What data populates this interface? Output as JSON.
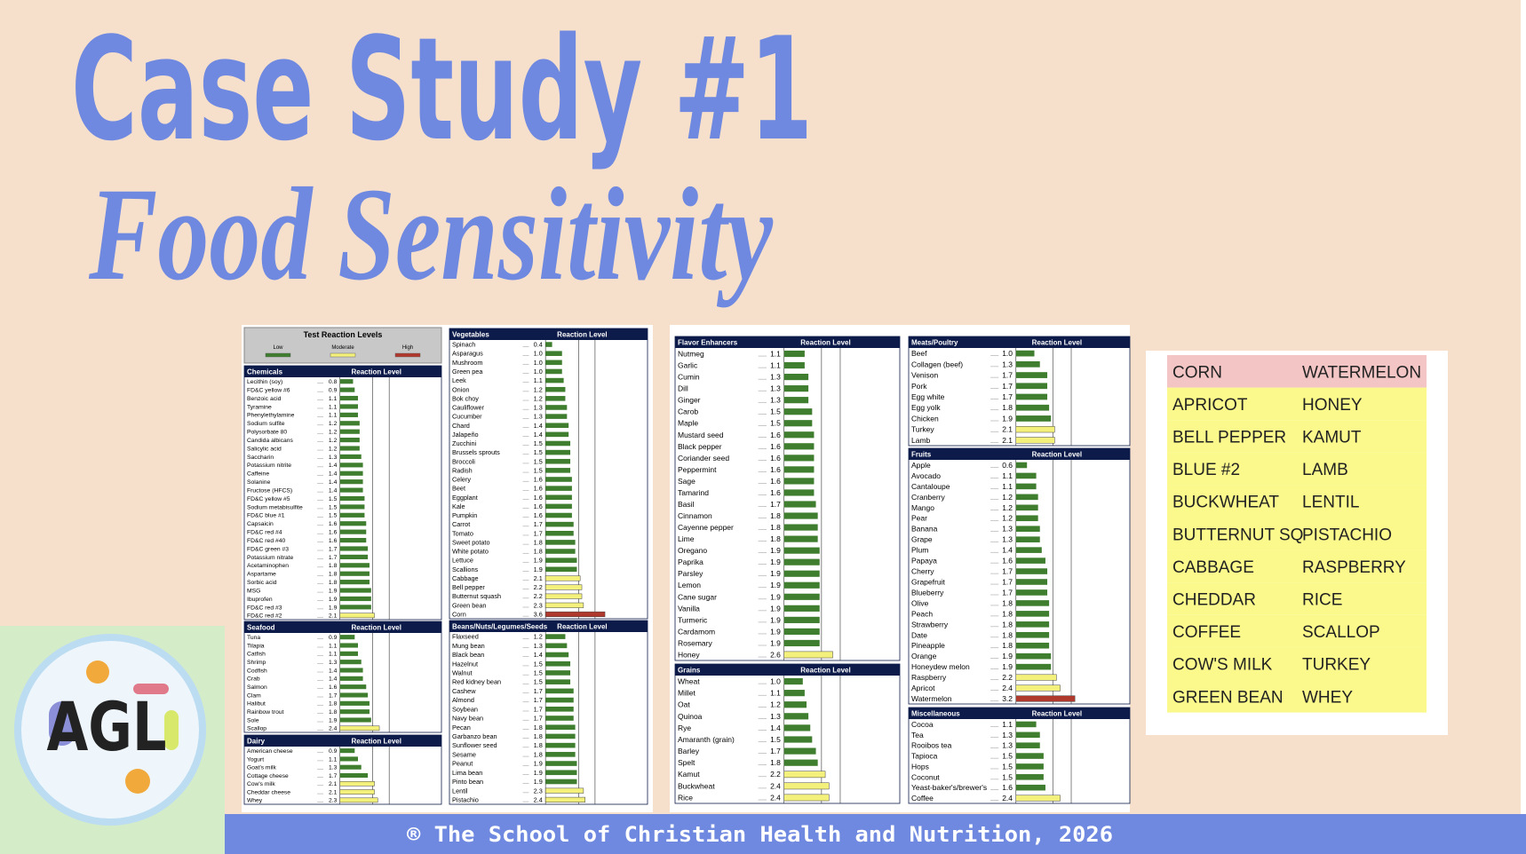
{
  "title": "Case Study #1",
  "subtitle": "Food Sensitivity",
  "report": {
    "legend": {
      "title": "Test Reaction Levels",
      "levels": [
        {
          "label": "Low",
          "color": "#3f7d2f"
        },
        {
          "label": "Moderate",
          "color": "#f4f07c"
        },
        {
          "label": "High",
          "color": "#b0392d"
        }
      ]
    },
    "xlim": [
      0,
      6
    ],
    "xticks": [
      2,
      3
    ],
    "sections": [
      {
        "title": "Chemicals",
        "header": "Reaction Level",
        "items": [
          {
            "name": "Lecithin (soy)",
            "value": 0.8
          },
          {
            "name": "FD&C yellow #6",
            "value": 0.9
          },
          {
            "name": "Benzoic acid",
            "value": 1.1
          },
          {
            "name": "Tyramine",
            "value": 1.1
          },
          {
            "name": "Phenylethylamine",
            "value": 1.1
          },
          {
            "name": "Sodium sulfite",
            "value": 1.2
          },
          {
            "name": "Polysorbate 80",
            "value": 1.2
          },
          {
            "name": "Candida albicans",
            "value": 1.2
          },
          {
            "name": "Salicylic acid",
            "value": 1.2
          },
          {
            "name": "Saccharin",
            "value": 1.3
          },
          {
            "name": "Potassium nitrite",
            "value": 1.4
          },
          {
            "name": "Caffeine",
            "value": 1.4
          },
          {
            "name": "Solanine",
            "value": 1.4
          },
          {
            "name": "Fructose (HFCS)",
            "value": 1.4
          },
          {
            "name": "FD&C yellow #5",
            "value": 1.5
          },
          {
            "name": "Sodium metabisulfite",
            "value": 1.5
          },
          {
            "name": "FD&C blue #1",
            "value": 1.5
          },
          {
            "name": "Capsaicin",
            "value": 1.6
          },
          {
            "name": "FD&C red #4",
            "value": 1.6
          },
          {
            "name": "FD&C red #40",
            "value": 1.6
          },
          {
            "name": "FD&C green #3",
            "value": 1.7
          },
          {
            "name": "Potassium nitrate",
            "value": 1.7
          },
          {
            "name": "Acetaminophen",
            "value": 1.8
          },
          {
            "name": "Aspartame",
            "value": 1.8
          },
          {
            "name": "Sorbic acid",
            "value": 1.8
          },
          {
            "name": "MSG",
            "value": 1.9
          },
          {
            "name": "Ibuprofen",
            "value": 1.9
          },
          {
            "name": "FD&C red #3",
            "value": 1.9
          },
          {
            "name": "FD&C red #2",
            "value": 2.1
          }
        ]
      },
      {
        "title": "Seafood",
        "header": "Reaction Level",
        "items": [
          {
            "name": "Tuna",
            "value": 0.9
          },
          {
            "name": "Tilapia",
            "value": 1.1
          },
          {
            "name": "Catfish",
            "value": 1.1
          },
          {
            "name": "Shrimp",
            "value": 1.3
          },
          {
            "name": "Codfish",
            "value": 1.4
          },
          {
            "name": "Crab",
            "value": 1.4
          },
          {
            "name": "Salmon",
            "value": 1.6
          },
          {
            "name": "Clam",
            "value": 1.7
          },
          {
            "name": "Halibut",
            "value": 1.8
          },
          {
            "name": "Rainbow trout",
            "value": 1.8
          },
          {
            "name": "Sole",
            "value": 1.9
          },
          {
            "name": "Scallop",
            "value": 2.4
          }
        ]
      },
      {
        "title": "Dairy",
        "header": "Reaction Level",
        "items": [
          {
            "name": "American cheese",
            "value": 0.9
          },
          {
            "name": "Yogurt",
            "value": 1.1
          },
          {
            "name": "Goat's milk",
            "value": 1.3
          },
          {
            "name": "Cottage cheese",
            "value": 1.7
          },
          {
            "name": "Cow's milk",
            "value": 2.1
          },
          {
            "name": "Cheddar cheese",
            "value": 2.1
          },
          {
            "name": "Whey",
            "value": 2.3
          }
        ]
      },
      {
        "title": "Vegetables",
        "header": "Reaction Level",
        "items": [
          {
            "name": "Spinach",
            "value": 0.4
          },
          {
            "name": "Asparagus",
            "value": 1,
            "label": "1.0"
          },
          {
            "name": "Mushroom",
            "value": 1,
            "label": "1.0"
          },
          {
            "name": "Green pea",
            "value": 1,
            "label": "1.0"
          },
          {
            "name": "Leek",
            "value": 1.1
          },
          {
            "name": "Onion",
            "value": 1.2
          },
          {
            "name": "Bok choy",
            "value": 1.2
          },
          {
            "name": "Cauliflower",
            "value": 1.3
          },
          {
            "name": "Cucumber",
            "value": 1.3
          },
          {
            "name": "Chard",
            "value": 1.4
          },
          {
            "name": "Jalapeño",
            "value": 1.4
          },
          {
            "name": "Zucchini",
            "value": 1.5
          },
          {
            "name": "Brussels sprouts",
            "value": 1.5
          },
          {
            "name": "Broccoli",
            "value": 1.5
          },
          {
            "name": "Radish",
            "value": 1.5
          },
          {
            "name": "Celery",
            "value": 1.6
          },
          {
            "name": "Beet",
            "value": 1.6
          },
          {
            "name": "Eggplant",
            "value": 1.6
          },
          {
            "name": "Kale",
            "value": 1.6
          },
          {
            "name": "Pumpkin",
            "value": 1.6
          },
          {
            "name": "Carrot",
            "value": 1.7
          },
          {
            "name": "Tomato",
            "value": 1.7
          },
          {
            "name": "Sweet potato",
            "value": 1.8
          },
          {
            "name": "White potato",
            "value": 1.8
          },
          {
            "name": "Lettuce",
            "value": 1.9
          },
          {
            "name": "Scallions",
            "value": 1.9
          },
          {
            "name": "Cabbage",
            "value": 2.1
          },
          {
            "name": "Bell pepper",
            "value": 2.2
          },
          {
            "name": "Butternut squash",
            "value": 2.2
          },
          {
            "name": "Green bean",
            "value": 2.3
          },
          {
            "name": "Corn",
            "value": 3.6
          }
        ]
      },
      {
        "title": "Beans/Nuts/Legumes/Seeds",
        "header": "Reaction Level",
        "items": [
          {
            "name": "Flaxseed",
            "value": 1.2
          },
          {
            "name": "Mung bean",
            "value": 1.3
          },
          {
            "name": "Black bean",
            "value": 1.4
          },
          {
            "name": "Hazelnut",
            "value": 1.5
          },
          {
            "name": "Walnut",
            "value": 1.5
          },
          {
            "name": "Red kidney bean",
            "value": 1.5
          },
          {
            "name": "Cashew",
            "value": 1.7
          },
          {
            "name": "Almond",
            "value": 1.7
          },
          {
            "name": "Soybean",
            "value": 1.7
          },
          {
            "name": "Navy bean",
            "value": 1.7
          },
          {
            "name": "Pecan",
            "value": 1.8
          },
          {
            "name": "Garbanzo bean",
            "value": 1.8
          },
          {
            "name": "Sunflower seed",
            "value": 1.8
          },
          {
            "name": "Sesame",
            "value": 1.8
          },
          {
            "name": "Peanut",
            "value": 1.9
          },
          {
            "name": "Lima bean",
            "value": 1.9
          },
          {
            "name": "Pinto bean",
            "value": 1.9
          },
          {
            "name": "Lentil",
            "value": 2.3
          },
          {
            "name": "Pistachio",
            "value": 2.4
          }
        ]
      },
      {
        "title": "Flavor Enhancers",
        "header": "Reaction Level",
        "items": [
          {
            "name": "Nutmeg",
            "value": 1.1
          },
          {
            "name": "Garlic",
            "value": 1.1
          },
          {
            "name": "Cumin",
            "value": 1.3
          },
          {
            "name": "Dill",
            "value": 1.3
          },
          {
            "name": "Ginger",
            "value": 1.3
          },
          {
            "name": "Carob",
            "value": 1.5
          },
          {
            "name": "Maple",
            "value": 1.5
          },
          {
            "name": "Mustard seed",
            "value": 1.6
          },
          {
            "name": "Black pepper",
            "value": 1.6
          },
          {
            "name": "Coriander seed",
            "value": 1.6
          },
          {
            "name": "Peppermint",
            "value": 1.6
          },
          {
            "name": "Sage",
            "value": 1.6
          },
          {
            "name": "Tamarind",
            "value": 1.6
          },
          {
            "name": "Basil",
            "value": 1.7
          },
          {
            "name": "Cinnamon",
            "value": 1.8
          },
          {
            "name": "Cayenne pepper",
            "value": 1.8
          },
          {
            "name": "Lime",
            "value": 1.8
          },
          {
            "name": "Oregano",
            "value": 1.9
          },
          {
            "name": "Paprika",
            "value": 1.9
          },
          {
            "name": "Parsley",
            "value": 1.9
          },
          {
            "name": "Lemon",
            "value": 1.9
          },
          {
            "name": "Cane sugar",
            "value": 1.9
          },
          {
            "name": "Vanilla",
            "value": 1.9
          },
          {
            "name": "Turmeric",
            "value": 1.9
          },
          {
            "name": "Cardamom",
            "value": 1.9
          },
          {
            "name": "Rosemary",
            "value": 1.9
          },
          {
            "name": "Honey",
            "value": 2.6
          }
        ]
      },
      {
        "title": "Grains",
        "header": "Reaction Level",
        "items": [
          {
            "name": "Wheat",
            "value": 1,
            "label": "1.0"
          },
          {
            "name": "Millet",
            "value": 1.1
          },
          {
            "name": "Oat",
            "value": 1.2
          },
          {
            "name": "Quinoa",
            "value": 1.3
          },
          {
            "name": "Rye",
            "value": 1.4
          },
          {
            "name": "Amaranth (grain)",
            "value": 1.5
          },
          {
            "name": "Barley",
            "value": 1.7
          },
          {
            "name": "Spelt",
            "value": 1.8
          },
          {
            "name": "Kamut",
            "value": 2.2
          },
          {
            "name": "Buckwheat",
            "value": 2.4
          },
          {
            "name": "Rice",
            "value": 2.4
          }
        ]
      },
      {
        "title": "Meats/Poultry",
        "header": "Reaction Level",
        "items": [
          {
            "name": "Beef",
            "value": 1,
            "label": "1.0"
          },
          {
            "name": "Collagen (beef)",
            "value": 1.3
          },
          {
            "name": "Venison",
            "value": 1.7
          },
          {
            "name": "Pork",
            "value": 1.7
          },
          {
            "name": "Egg white",
            "value": 1.7
          },
          {
            "name": "Egg yolk",
            "value": 1.8
          },
          {
            "name": "Chicken",
            "value": 1.9
          },
          {
            "name": "Turkey",
            "value": 2.1
          },
          {
            "name": "Lamb",
            "value": 2.1
          }
        ]
      },
      {
        "title": "Fruits",
        "header": "Reaction Level",
        "items": [
          {
            "name": "Apple",
            "value": 0.6
          },
          {
            "name": "Avocado",
            "value": 1.1
          },
          {
            "name": "Cantaloupe",
            "value": 1.1
          },
          {
            "name": "Cranberry",
            "value": 1.2
          },
          {
            "name": "Mango",
            "value": 1.2
          },
          {
            "name": "Pear",
            "value": 1.2
          },
          {
            "name": "Banana",
            "value": 1.3
          },
          {
            "name": "Grape",
            "value": 1.3
          },
          {
            "name": "Plum",
            "value": 1.4
          },
          {
            "name": "Papaya",
            "value": 1.6
          },
          {
            "name": "Cherry",
            "value": 1.7
          },
          {
            "name": "Grapefruit",
            "value": 1.7
          },
          {
            "name": "Blueberry",
            "value": 1.7
          },
          {
            "name": "Olive",
            "value": 1.8
          },
          {
            "name": "Peach",
            "value": 1.8
          },
          {
            "name": "Strawberry",
            "value": 1.8
          },
          {
            "name": "Date",
            "value": 1.8
          },
          {
            "name": "Pineapple",
            "value": 1.8
          },
          {
            "name": "Orange",
            "value": 1.9
          },
          {
            "name": "Honeydew melon",
            "value": 1.9
          },
          {
            "name": "Raspberry",
            "value": 2.2
          },
          {
            "name": "Apricot",
            "value": 2.4
          },
          {
            "name": "Watermelon",
            "value": 3.2
          }
        ]
      },
      {
        "title": "Miscellaneous",
        "header": "Reaction Level",
        "items": [
          {
            "name": "Cocoa",
            "value": 1.1
          },
          {
            "name": "Tea",
            "value": 1.3
          },
          {
            "name": "Rooibos tea",
            "value": 1.3
          },
          {
            "name": "Tapioca",
            "value": 1.5
          },
          {
            "name": "Hops",
            "value": 1.5
          },
          {
            "name": "Coconut",
            "value": 1.5
          },
          {
            "name": "Yeast-baker's/brewer's",
            "value": 1.6
          },
          {
            "name": "Coffee",
            "value": 2.4
          }
        ]
      }
    ]
  },
  "table": {
    "highlight_rows": [
      0
    ],
    "rows": [
      [
        "CORN",
        "WATERMELON"
      ],
      [
        "APRICOT",
        "HONEY"
      ],
      [
        "BELL PEPPER",
        "KAMUT"
      ],
      [
        "BLUE #2",
        "LAMB"
      ],
      [
        "BUCKWHEAT",
        "LENTIL"
      ],
      [
        "BUTTERNUT SQ",
        "PISTACHIO"
      ],
      [
        "CABBAGE",
        "RASPBERRY"
      ],
      [
        "CHEDDAR",
        "RICE"
      ],
      [
        "COFFEE",
        "SCALLOP"
      ],
      [
        "COW'S MILK",
        "TURKEY"
      ],
      [
        "GREEN BEAN",
        "WHEY"
      ]
    ]
  },
  "logo": "AGL",
  "footer": "® The School of Christian Health and Nutrition, 2026"
}
